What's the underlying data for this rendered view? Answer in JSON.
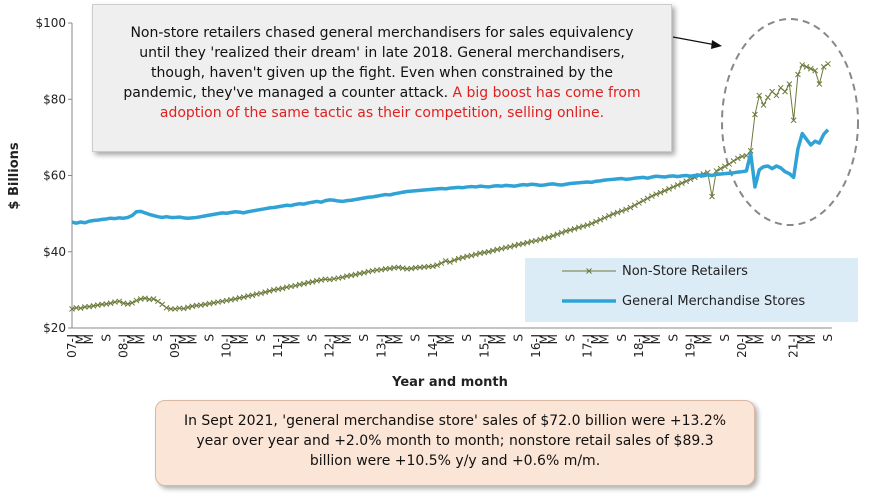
{
  "chart_data": {
    "type": "line",
    "annotation": {
      "text": "Non-store retailers chased general merchandisers for sales equivalency until they 'realized their dream' in late 2018. General merchandisers, though, haven't given up the fight. Even when constrained by the pandemic, they've managed a counter attack.",
      "highlight": "A big boost has come from adoption of the same tactic as their competition, selling online."
    },
    "note": "In Sept 2021, 'general merchandise store' sales of $72.0 billion were +13.2% year over year and +2.0% month to month; nonstore retail sales of $89.3 billion were +10.5% y/y and +0.6% m/m.",
    "x_label": "Year and month",
    "y_label": "$ Billions",
    "ylim": [
      20,
      100
    ],
    "yticks": [
      {
        "value": 20,
        "label": "$20"
      },
      {
        "value": 40,
        "label": "$40"
      },
      {
        "value": 60,
        "label": "$60"
      },
      {
        "value": 80,
        "label": "$80"
      },
      {
        "value": 100,
        "label": "$100"
      }
    ],
    "categories": [
      "07-J",
      null,
      "M",
      null,
      "M",
      null,
      null,
      null,
      "S",
      null,
      null,
      null,
      "08-J",
      null,
      "M",
      null,
      "M",
      null,
      null,
      null,
      "S",
      null,
      null,
      null,
      "09-J",
      null,
      "M",
      null,
      "M",
      null,
      null,
      null,
      "S",
      null,
      null,
      null,
      "10-J",
      null,
      "M",
      null,
      "M",
      null,
      null,
      null,
      "S",
      null,
      null,
      null,
      "11-J",
      null,
      "M",
      null,
      "M",
      null,
      null,
      null,
      "S",
      null,
      null,
      null,
      "12-J",
      null,
      "M",
      null,
      "M",
      null,
      null,
      null,
      "S",
      null,
      null,
      null,
      "13-J",
      null,
      "M",
      null,
      "M",
      null,
      null,
      null,
      "S",
      null,
      null,
      null,
      "14-J",
      null,
      "M",
      null,
      "M",
      null,
      null,
      null,
      "S",
      null,
      null,
      null,
      "15-J",
      null,
      "M",
      null,
      "M",
      null,
      null,
      null,
      "S",
      null,
      null,
      null,
      "16-J",
      null,
      "M",
      null,
      "M",
      null,
      null,
      null,
      "S",
      null,
      null,
      null,
      "17-J",
      null,
      "M",
      null,
      "M",
      null,
      null,
      null,
      "S",
      null,
      null,
      null,
      "18-J",
      null,
      "M",
      null,
      "M",
      null,
      null,
      null,
      "S",
      null,
      null,
      null,
      "19-J",
      null,
      "M",
      null,
      "M",
      null,
      null,
      null,
      "S",
      null,
      null,
      null,
      "20-J",
      null,
      "M",
      null,
      "M",
      null,
      null,
      null,
      "S",
      null,
      null,
      null,
      "21-J",
      null,
      "M",
      null,
      "M",
      null,
      null,
      null,
      "S"
    ],
    "series": [
      {
        "name": "Non-Store Retailers",
        "color": "#6b7a3a",
        "marker": "x",
        "values": [
          25.0,
          25.3,
          25.2,
          25.5,
          25.6,
          25.8,
          26.0,
          26.2,
          26.3,
          26.5,
          26.8,
          27.0,
          26.5,
          26.3,
          26.6,
          27.2,
          27.6,
          27.8,
          27.5,
          27.6,
          27.0,
          26.2,
          25.3,
          25.0,
          25.0,
          25.2,
          25.1,
          25.4,
          25.7,
          25.9,
          26.0,
          26.2,
          26.4,
          26.6,
          26.8,
          27.0,
          27.2,
          27.4,
          27.6,
          27.9,
          28.1,
          28.4,
          28.6,
          28.9,
          29.1,
          29.4,
          29.7,
          30.0,
          30.2,
          30.4,
          30.7,
          30.9,
          31.1,
          31.4,
          31.6,
          31.9,
          32.1,
          32.4,
          32.6,
          32.8,
          32.7,
          32.9,
          33.1,
          33.3,
          33.6,
          33.8,
          34.0,
          34.3,
          34.5,
          34.8,
          35.0,
          35.2,
          35.3,
          35.5,
          35.6,
          35.8,
          35.9,
          35.7,
          35.5,
          35.6,
          35.8,
          35.9,
          36.0,
          36.1,
          36.2,
          36.5,
          37.0,
          37.6,
          37.3,
          37.8,
          38.2,
          38.5,
          38.8,
          39.0,
          39.3,
          39.6,
          39.8,
          40.0,
          40.3,
          40.6,
          40.8,
          41.1,
          41.3,
          41.6,
          41.9,
          42.1,
          42.4,
          42.7,
          42.9,
          43.2,
          43.5,
          43.8,
          44.2,
          44.6,
          45.0,
          45.4,
          45.7,
          46.0,
          46.4,
          46.7,
          47.0,
          47.4,
          47.9,
          48.4,
          48.9,
          49.4,
          49.9,
          50.3,
          50.7,
          51.1,
          51.6,
          52.2,
          52.8,
          53.4,
          54.0,
          54.6,
          55.1,
          55.5,
          56.0,
          56.5,
          57.0,
          57.5,
          58.0,
          58.5,
          59.0,
          59.5,
          60.0,
          60.4,
          60.8,
          54.5,
          61.2,
          61.8,
          62.4,
          63.0,
          63.8,
          64.5,
          65.0,
          65.2,
          66.5,
          76.0,
          81.0,
          78.5,
          80.5,
          82.0,
          81.0,
          83.0,
          82.0,
          84.0,
          74.5,
          86.5,
          89.0,
          88.5,
          88.0,
          87.5,
          84.0,
          88.5,
          89.3
        ]
      },
      {
        "name": "General Merchandise Stores",
        "color": "#2fa3d6",
        "values": [
          47.8,
          47.5,
          47.8,
          47.6,
          48.0,
          48.2,
          48.3,
          48.5,
          48.6,
          48.8,
          48.7,
          48.9,
          48.8,
          49.0,
          49.5,
          50.5,
          50.6,
          50.2,
          49.8,
          49.5,
          49.2,
          49.0,
          49.2,
          49.0,
          49.0,
          49.1,
          48.9,
          48.8,
          48.9,
          49.0,
          49.2,
          49.4,
          49.6,
          49.8,
          50.0,
          50.2,
          50.1,
          50.3,
          50.5,
          50.4,
          50.2,
          50.5,
          50.7,
          50.9,
          51.1,
          51.3,
          51.5,
          51.6,
          51.8,
          52.0,
          52.2,
          52.1,
          52.4,
          52.6,
          52.5,
          52.8,
          53.0,
          53.2,
          53.0,
          53.4,
          53.6,
          53.5,
          53.3,
          53.2,
          53.4,
          53.5,
          53.7,
          53.9,
          54.1,
          54.3,
          54.4,
          54.6,
          54.8,
          55.0,
          54.9,
          55.2,
          55.4,
          55.6,
          55.8,
          55.9,
          56.0,
          56.1,
          56.2,
          56.3,
          56.4,
          56.5,
          56.6,
          56.5,
          56.7,
          56.8,
          56.9,
          56.8,
          57.0,
          57.1,
          57.0,
          57.2,
          57.1,
          57.0,
          57.2,
          57.3,
          57.2,
          57.4,
          57.3,
          57.2,
          57.4,
          57.6,
          57.5,
          57.7,
          57.6,
          57.4,
          57.5,
          57.7,
          57.8,
          57.6,
          57.5,
          57.7,
          57.9,
          58.0,
          58.1,
          58.2,
          58.3,
          58.2,
          58.5,
          58.6,
          58.8,
          58.9,
          59.0,
          59.1,
          59.2,
          59.0,
          59.1,
          59.3,
          59.4,
          59.5,
          59.3,
          59.6,
          59.8,
          59.7,
          59.6,
          59.8,
          59.9,
          59.7,
          59.9,
          60.0,
          59.8,
          60.0,
          60.1,
          59.9,
          60.2,
          60.0,
          60.3,
          60.4,
          60.5,
          60.6,
          60.7,
          60.9,
          61.0,
          61.2,
          65.8,
          57.0,
          61.5,
          62.3,
          62.5,
          61.8,
          62.5,
          62.0,
          61.0,
          60.5,
          59.5,
          67.0,
          71.0,
          69.5,
          68.0,
          69.0,
          68.5,
          70.8,
          72.0
        ]
      }
    ]
  }
}
